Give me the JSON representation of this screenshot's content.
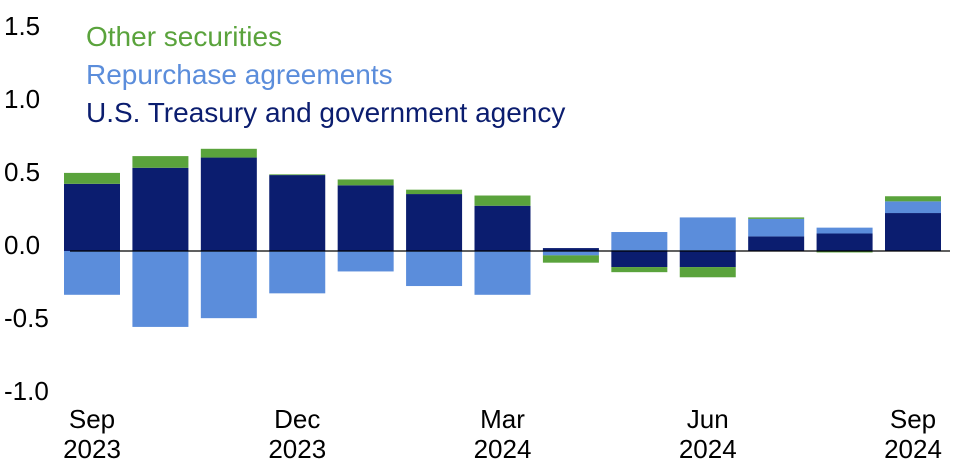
{
  "chart_data": {
    "type": "bar",
    "stacked": true,
    "categories": [
      "Sep 2023",
      null,
      null,
      "Dec 2023",
      null,
      null,
      "Mar 2024",
      null,
      null,
      "Jun 2024",
      null,
      null,
      "Sep 2024"
    ],
    "series": [
      {
        "name": "U.S. Treasury and government agency",
        "color": "#0b1d6f",
        "values": [
          0.46,
          0.57,
          0.64,
          0.52,
          0.45,
          0.39,
          0.31,
          0.02,
          -0.11,
          -0.11,
          0.1,
          0.12,
          0.26
        ]
      },
      {
        "name": "Repurchase agreements",
        "color": "#5b8ddb",
        "values": [
          -0.3,
          -0.52,
          -0.46,
          -0.29,
          -0.14,
          -0.24,
          -0.3,
          -0.03,
          0.13,
          0.23,
          0.12,
          0.04,
          0.08
        ]
      },
      {
        "name": "Other securities",
        "color": "#5aa33c",
        "values": [
          0.075,
          0.08,
          0.06,
          0.005,
          0.04,
          0.03,
          0.07,
          -0.05,
          -0.035,
          -0.07,
          0.01,
          -0.01,
          0.035
        ]
      }
    ],
    "ylim": [
      -1.0,
      1.5
    ],
    "yticks": [
      {
        "value": -1.0,
        "label": "-1.0"
      },
      -0.5,
      {
        "value": 0,
        "label": "0.0"
      },
      0.5,
      {
        "value": 1.0,
        "label": "1.0"
      },
      1.5
    ],
    "legend": "upper-left"
  }
}
